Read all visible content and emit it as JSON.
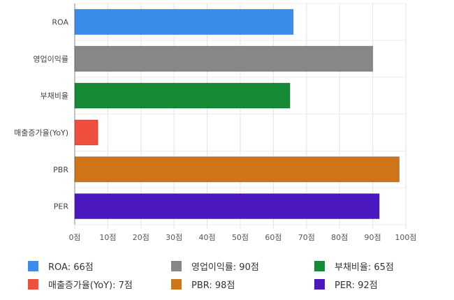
{
  "chart_data": {
    "type": "bar",
    "orientation": "horizontal",
    "categories": [
      "ROA",
      "영업이익률",
      "부채비율",
      "매출증가율(YoY)",
      "PBR",
      "PER"
    ],
    "values": [
      66,
      90,
      65,
      7,
      98,
      92
    ],
    "colors": [
      "#3b8ee8",
      "#878787",
      "#168a35",
      "#ef4f3c",
      "#cf7518",
      "#4b18c0"
    ],
    "xlim": [
      0,
      100
    ],
    "x_ticks": [
      0,
      10,
      20,
      30,
      40,
      50,
      60,
      70,
      80,
      90,
      100
    ],
    "tick_suffix": "점",
    "grid": true,
    "legend_position": "bottom",
    "legend": [
      "ROA: 66점",
      "영업이익률: 90점",
      "부채비율: 65점",
      "매출증가율(YoY): 7점",
      "PBR: 98점",
      "PER: 92점"
    ]
  }
}
